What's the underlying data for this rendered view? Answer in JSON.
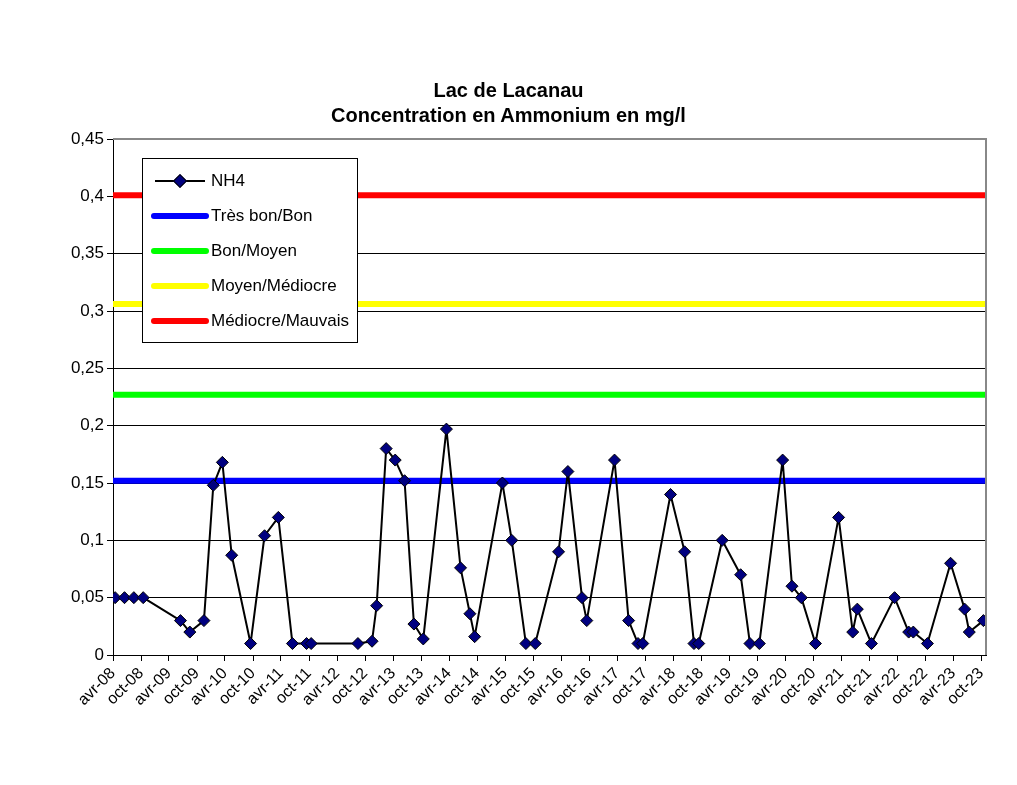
{
  "chart_data": {
    "type": "line",
    "title": "Lac de Lacanau",
    "subtitle": "Concentration en Ammonium en mg/l",
    "series": [
      {
        "name": "NH4",
        "color": "#000080",
        "x": [
          "2008-04-15",
          "2008-06-15",
          "2008-08-15",
          "2008-10-15",
          "2009-06-15",
          "2009-08-15",
          "2009-11-15",
          "2010-01-15",
          "2010-03-15",
          "2010-05-15",
          "2010-09-15",
          "2010-12-15",
          "2011-03-15",
          "2011-06-15",
          "2011-09-15",
          "2011-10-15",
          "2012-08-15",
          "2012-11-15",
          "2012-12-15",
          "2013-02-15",
          "2013-04-15",
          "2013-06-15",
          "2013-08-15",
          "2013-10-15",
          "2014-03-15",
          "2014-06-15",
          "2014-08-15",
          "2014-09-15",
          "2015-03-15",
          "2015-05-15",
          "2015-08-15",
          "2015-10-15",
          "2016-03-15",
          "2016-05-15",
          "2016-08-15",
          "2016-09-15",
          "2017-03-15",
          "2017-06-15",
          "2017-08-15",
          "2017-09-15",
          "2018-03-15",
          "2018-06-15",
          "2018-08-15",
          "2018-09-15",
          "2019-02-15",
          "2019-06-15",
          "2019-08-15",
          "2019-10-15",
          "2020-03-15",
          "2020-05-15",
          "2020-07-15",
          "2020-10-15",
          "2021-03-15",
          "2021-06-15",
          "2021-07-15",
          "2021-10-15",
          "2022-03-15",
          "2022-06-15",
          "2022-07-15",
          "2022-10-15",
          "2023-03-15",
          "2023-06-15",
          "2023-07-15",
          "2023-10-15"
        ],
        "values": [
          0.05,
          0.05,
          0.05,
          0.05,
          0.03,
          0.02,
          0.03,
          0.148,
          0.168,
          0.087,
          0.01,
          0.104,
          0.12,
          0.01,
          0.01,
          0.01,
          0.01,
          0.012,
          0.043,
          0.18,
          0.17,
          0.152,
          0.027,
          0.014,
          0.197,
          0.076,
          0.036,
          0.016,
          0.15,
          0.1,
          0.01,
          0.01,
          0.09,
          0.16,
          0.05,
          0.03,
          0.17,
          0.03,
          0.01,
          0.01,
          0.14,
          0.09,
          0.01,
          0.01,
          0.1,
          0.07,
          0.01,
          0.01,
          0.17,
          0.06,
          0.05,
          0.01,
          0.12,
          0.02,
          0.04,
          0.01,
          0.05,
          0.02,
          0.02,
          0.01,
          0.08,
          0.04,
          0.02,
          0.03
        ]
      }
    ],
    "ref_lines": [
      {
        "axis": "y",
        "value": 0.152,
        "label": "Très bon/Bon",
        "color": "#0000ff"
      },
      {
        "axis": "y",
        "value": 0.227,
        "label": "Bon/Moyen",
        "color": "#00ff00"
      },
      {
        "axis": "y",
        "value": 0.306,
        "label": "Moyen/Médiocre",
        "color": "#ffff00"
      },
      {
        "axis": "y",
        "value": 0.401,
        "label": "Médiocre/Mauvais",
        "color": "#ff0000"
      }
    ],
    "xlim": [
      "2008-04",
      "2023-11"
    ],
    "xticks": [
      {
        "value": "2008-04",
        "label": "avr-08"
      },
      {
        "value": "2008-10",
        "label": "oct-08"
      },
      {
        "value": "2009-04",
        "label": "avr-09"
      },
      {
        "value": "2009-10",
        "label": "oct-09"
      },
      {
        "value": "2010-04",
        "label": "avr-10"
      },
      {
        "value": "2010-10",
        "label": "oct-10"
      },
      {
        "value": "2011-04",
        "label": "avr-11"
      },
      {
        "value": "2011-10",
        "label": "oct-11"
      },
      {
        "value": "2012-04",
        "label": "avr-12"
      },
      {
        "value": "2012-10",
        "label": "oct-12"
      },
      {
        "value": "2013-04",
        "label": "avr-13"
      },
      {
        "value": "2013-10",
        "label": "oct-13"
      },
      {
        "value": "2014-04",
        "label": "avr-14"
      },
      {
        "value": "2014-10",
        "label": "oct-14"
      },
      {
        "value": "2015-04",
        "label": "avr-15"
      },
      {
        "value": "2015-10",
        "label": "oct-15"
      },
      {
        "value": "2016-04",
        "label": "avr-16"
      },
      {
        "value": "2016-10",
        "label": "oct-16"
      },
      {
        "value": "2017-04",
        "label": "avr-17"
      },
      {
        "value": "2017-10",
        "label": "oct-17"
      },
      {
        "value": "2018-04",
        "label": "avr-18"
      },
      {
        "value": "2018-10",
        "label": "oct-18"
      },
      {
        "value": "2019-04",
        "label": "avr-19"
      },
      {
        "value": "2019-10",
        "label": "oct-19"
      },
      {
        "value": "2020-04",
        "label": "avr-20"
      },
      {
        "value": "2020-10",
        "label": "oct-20"
      },
      {
        "value": "2021-04",
        "label": "avr-21"
      },
      {
        "value": "2021-10",
        "label": "oct-21"
      },
      {
        "value": "2022-04",
        "label": "avr-22"
      },
      {
        "value": "2022-10",
        "label": "oct-22"
      },
      {
        "value": "2023-04",
        "label": "avr-23"
      },
      {
        "value": "2023-10",
        "label": "oct-23"
      }
    ],
    "ylim": [
      0,
      0.45
    ],
    "yticks": [
      0,
      {
        "value": 0.05,
        "label": "0,05"
      },
      {
        "value": 0.1,
        "label": "0,1"
      },
      {
        "value": 0.15,
        "label": "0,15"
      },
      {
        "value": 0.2,
        "label": "0,2"
      },
      {
        "value": 0.25,
        "label": "0,25"
      },
      {
        "value": 0.3,
        "label": "0,3"
      },
      {
        "value": 0.35,
        "label": "0,35"
      },
      {
        "value": 0.4,
        "label": "0,4"
      },
      {
        "value": 0.45,
        "label": "0,45"
      }
    ],
    "grid": "y",
    "legend": "top left",
    "marker": "diamond",
    "line_style": "solid"
  }
}
